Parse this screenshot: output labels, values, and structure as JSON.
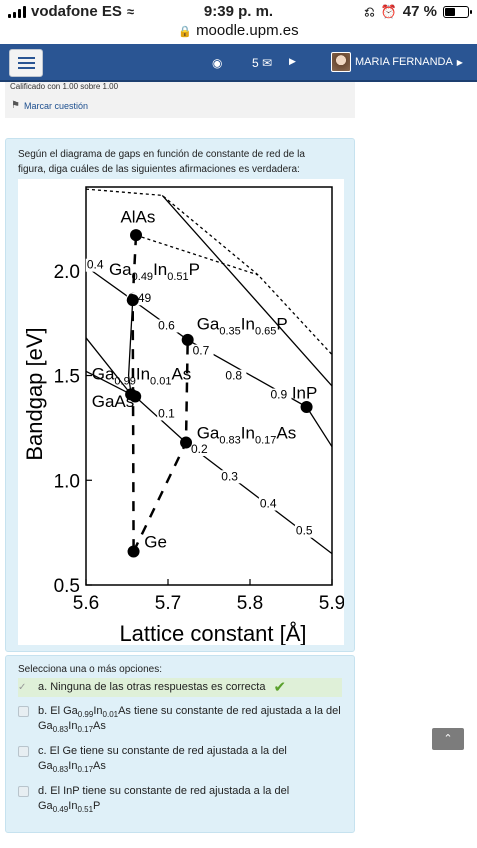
{
  "status": {
    "carrier": "vodafone ES",
    "time": "9:39 p. m.",
    "battery": "47 %",
    "battery_level": 0.47,
    "url": "moodle.upm.es"
  },
  "navbar": {
    "message_count": "5",
    "user_name": "MARIA FERNANDA"
  },
  "info": {
    "graded": "Calificado con 1.00 sobre 1.00",
    "flag_label": "Marcar cuestión"
  },
  "question": {
    "text": "Según el diagrama de gaps en función de constante de red de la figura, diga cuáles de las siguientes afirmaciones es verdadera:"
  },
  "answers": {
    "prompt": "Selecciona una o más opciones:",
    "a": "a. Ninguna de las otras respuestas es correcta",
    "b_pre": "b. El Ga",
    "b_s1": "0.99",
    "b_mid": "In",
    "b_s2": "0.01",
    "b_mid2": "As tiene su constante de red ajustada a la del Ga",
    "b_s3": "0.83",
    "b_mid3": "In",
    "b_s4": "0.17",
    "b_end": "As",
    "c_pre": "c. El Ge tiene su constante de red ajustada a la del Ga",
    "c_s1": "0.83",
    "c_mid": "In",
    "c_s2": "0.17",
    "c_end": "As",
    "d_pre": "d. El InP tiene su constante de red ajustada a la del Ga",
    "d_s1": "0.49",
    "d_mid": "In",
    "d_s2": "0.51",
    "d_end": "P"
  },
  "chart_data": {
    "type": "scatter",
    "title": "",
    "xlabel": "Lattice constant [Å]",
    "ylabel": "Bandgap [eV]",
    "xlim": [
      5.6,
      5.9
    ],
    "ylim": [
      0.5,
      2.4
    ],
    "xticks": [
      "5.6",
      "5.7",
      "5.8",
      "5.9"
    ],
    "yticks": [
      "0.5",
      "1.0",
      "1.5",
      "2.0"
    ],
    "points": [
      {
        "label": "AlAs",
        "x": 5.661,
        "y": 2.17
      },
      {
        "label": "Ga0.49In0.51P",
        "x": 5.657,
        "y": 1.86
      },
      {
        "label": "Ga0.35In0.65P",
        "x": 5.724,
        "y": 1.67
      },
      {
        "label": "Ga0.99In0.01As",
        "x": 5.655,
        "y": 1.41
      },
      {
        "label": "GaAs",
        "x": 5.66,
        "y": 1.4
      },
      {
        "label": "Ga0.83In0.17As",
        "x": 5.722,
        "y": 1.18
      },
      {
        "label": "InP",
        "x": 5.869,
        "y": 1.35
      },
      {
        "label": "Ge",
        "x": 5.658,
        "y": 0.66
      }
    ],
    "compositions": [
      "0.4",
      "0.49",
      "0.6",
      "0.7",
      "0.8",
      "0.9",
      "0.1",
      "0.2",
      "0.3",
      "0.4",
      "0.5"
    ],
    "series_lines": [
      {
        "style": "solid",
        "x": [
          5.6,
          5.657,
          5.724,
          5.869,
          5.9
        ],
        "y": [
          2.02,
          1.86,
          1.67,
          1.35,
          1.16
        ]
      },
      {
        "style": "solid",
        "x": [
          5.6,
          5.66,
          5.722,
          5.9
        ],
        "y": [
          1.52,
          1.4,
          1.18,
          0.65
        ]
      },
      {
        "style": "solid",
        "x": [
          5.6,
          5.655
        ],
        "y": [
          1.68,
          1.41
        ]
      },
      {
        "style": "dotted",
        "x": [
          5.6,
          5.693,
          5.81,
          5.9
        ],
        "y": [
          2.39,
          2.36,
          1.98,
          1.6
        ]
      },
      {
        "style": "dotted",
        "x": [
          5.661,
          5.81
        ],
        "y": [
          2.17,
          1.98
        ]
      },
      {
        "style": "solid",
        "x": [
          5.693,
          5.9
        ],
        "y": [
          2.36,
          1.45
        ]
      },
      {
        "style": "solid",
        "x": [
          5.657,
          5.652,
          5.655
        ],
        "y": [
          1.86,
          1.5,
          1.41
        ]
      },
      {
        "style": "dashed",
        "x": [
          5.661,
          5.657,
          5.658
        ],
        "y": [
          2.17,
          1.86,
          0.66
        ]
      },
      {
        "style": "dashed",
        "x": [
          5.658,
          5.722,
          5.724
        ],
        "y": [
          0.66,
          1.18,
          1.67
        ]
      }
    ]
  }
}
